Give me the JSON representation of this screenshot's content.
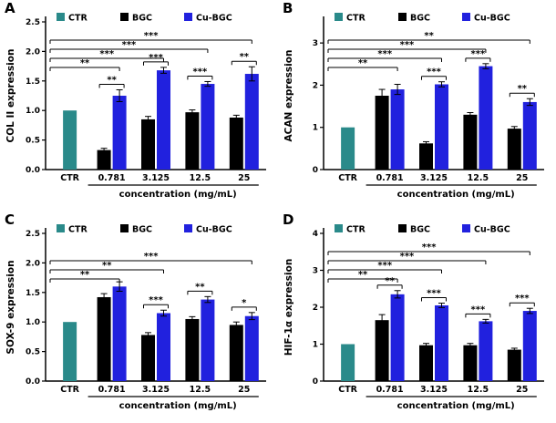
{
  "colors": {
    "ctr": "#2a8a8a",
    "bgc": "#000000",
    "cu_bgc": "#2121de",
    "axis": "#000000"
  },
  "chart_data": [
    {
      "panel": "A",
      "type": "bar",
      "ylabel": "COL II expression",
      "xlabel": "concentration (mg/mL)",
      "ctr_label": "CTR",
      "legend": [
        "CTR",
        "BGC",
        "Cu-BGC"
      ],
      "ylim": [
        0,
        2.5
      ],
      "yticks": [
        "0.0",
        "0.5",
        "1.0",
        "1.5",
        "2.0",
        "2.5"
      ],
      "ytick_values": [
        0,
        0.5,
        1,
        1.5,
        2,
        2.5
      ],
      "ctr_value": 1.0,
      "categories": [
        "0.781",
        "3.125",
        "12.5",
        "25"
      ],
      "series": [
        {
          "name": "BGC",
          "values": [
            0.33,
            0.85,
            0.97,
            0.88
          ],
          "errors": [
            0.03,
            0.05,
            0.04,
            0.04
          ]
        },
        {
          "name": "Cu-BGC",
          "values": [
            1.25,
            1.68,
            1.45,
            1.62
          ],
          "errors": [
            0.1,
            0.05,
            0.04,
            0.12
          ]
        }
      ],
      "significance": {
        "pairs": [
          {
            "group": 0,
            "stars": "**"
          },
          {
            "group": 1,
            "stars": "***"
          },
          {
            "group": 2,
            "stars": "***"
          },
          {
            "group": 3,
            "stars": "**"
          }
        ],
        "long": [
          {
            "to_group": 0,
            "stars": "**"
          },
          {
            "to_group": 1,
            "stars": "***"
          },
          {
            "to_group": 2,
            "stars": "***"
          },
          {
            "to_group": 3,
            "stars": "***"
          }
        ]
      }
    },
    {
      "panel": "B",
      "type": "bar",
      "ylabel": "ACAN expression",
      "xlabel": "concentration (mg/mL)",
      "ctr_label": "CTR",
      "legend": [
        "CTR",
        "BGC",
        "Cu-BGC"
      ],
      "ylim": [
        0,
        3.5
      ],
      "yticks": [
        "0",
        "1",
        "2",
        "3"
      ],
      "ytick_values": [
        0,
        1,
        2,
        3
      ],
      "ctr_value": 1.0,
      "categories": [
        "0.781",
        "3.125",
        "12.5",
        "25"
      ],
      "series": [
        {
          "name": "BGC",
          "values": [
            1.75,
            0.62,
            1.3,
            0.97
          ],
          "errors": [
            0.15,
            0.04,
            0.05,
            0.05
          ]
        },
        {
          "name": "Cu-BGC",
          "values": [
            1.9,
            2.02,
            2.45,
            1.6
          ],
          "errors": [
            0.12,
            0.06,
            0.06,
            0.08
          ]
        }
      ],
      "significance": {
        "pairs": [
          {
            "group": 1,
            "stars": "***"
          },
          {
            "group": 2,
            "stars": "***"
          },
          {
            "group": 3,
            "stars": "**"
          }
        ],
        "long": [
          {
            "to_group": 0,
            "stars": "**"
          },
          {
            "to_group": 1,
            "stars": "***"
          },
          {
            "to_group": 2,
            "stars": "***"
          },
          {
            "to_group": 3,
            "stars": "**"
          }
        ]
      }
    },
    {
      "panel": "C",
      "type": "bar",
      "ylabel": "SOX-9 expression",
      "xlabel": "concentration (mg/mL)",
      "ctr_label": "CTR",
      "legend": [
        "CTR",
        "BGC",
        "Cu-BGC"
      ],
      "ylim": [
        0,
        2.5
      ],
      "yticks": [
        "0.0",
        "0.5",
        "1.0",
        "1.5",
        "2.0",
        "2.5"
      ],
      "ytick_values": [
        0,
        0.5,
        1,
        1.5,
        2,
        2.5
      ],
      "ctr_value": 1.0,
      "categories": [
        "0.781",
        "3.125",
        "12.5",
        "25"
      ],
      "series": [
        {
          "name": "BGC",
          "values": [
            1.42,
            0.78,
            1.05,
            0.95
          ],
          "errors": [
            0.06,
            0.04,
            0.04,
            0.05
          ]
        },
        {
          "name": "Cu-BGC",
          "values": [
            1.6,
            1.15,
            1.38,
            1.1
          ],
          "errors": [
            0.08,
            0.05,
            0.05,
            0.06
          ]
        }
      ],
      "significance": {
        "pairs": [
          {
            "group": 1,
            "stars": "***"
          },
          {
            "group": 2,
            "stars": "**"
          },
          {
            "group": 3,
            "stars": "*"
          }
        ],
        "long": [
          {
            "to_group": 0,
            "stars": "**"
          },
          {
            "to_group": 1,
            "stars": "**"
          },
          {
            "to_group": 3,
            "stars": "***"
          }
        ]
      }
    },
    {
      "panel": "D",
      "type": "bar",
      "ylabel": "HIF-1α  expression",
      "xlabel": "concentration (mg/mL)",
      "ctr_label": "CTR",
      "legend": [
        "CTR",
        "BGC",
        "Cu-BGC"
      ],
      "ylim": [
        0,
        4
      ],
      "yticks": [
        "0",
        "1",
        "2",
        "3",
        "4"
      ],
      "ytick_values": [
        0,
        1,
        2,
        3,
        4
      ],
      "ctr_value": 1.0,
      "categories": [
        "0.781",
        "3.125",
        "12.5",
        "25"
      ],
      "series": [
        {
          "name": "BGC",
          "values": [
            1.65,
            0.97,
            0.97,
            0.85
          ],
          "errors": [
            0.15,
            0.05,
            0.05,
            0.04
          ]
        },
        {
          "name": "Cu-BGC",
          "values": [
            2.35,
            2.05,
            1.62,
            1.9
          ],
          "errors": [
            0.1,
            0.06,
            0.05,
            0.07
          ]
        }
      ],
      "significance": {
        "pairs": [
          {
            "group": 0,
            "stars": "**"
          },
          {
            "group": 1,
            "stars": "***"
          },
          {
            "group": 2,
            "stars": "***"
          },
          {
            "group": 3,
            "stars": "***"
          }
        ],
        "long": [
          {
            "to_group": 0,
            "stars": "**"
          },
          {
            "to_group": 1,
            "stars": "***"
          },
          {
            "to_group": 2,
            "stars": "***"
          },
          {
            "to_group": 3,
            "stars": "***"
          }
        ]
      }
    }
  ]
}
